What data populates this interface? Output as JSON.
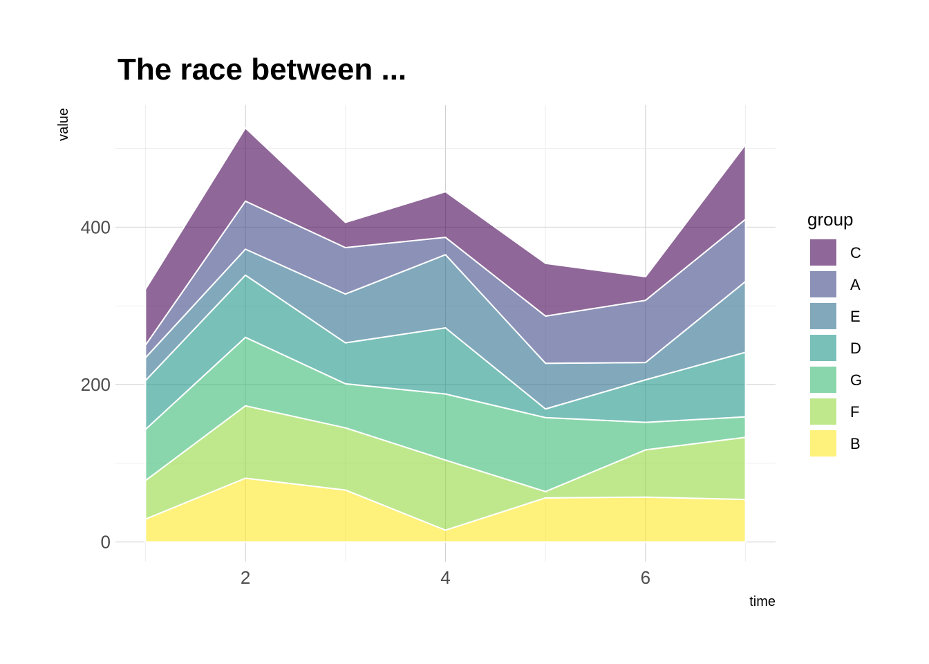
{
  "chart_data": {
    "type": "area",
    "stacked": true,
    "title": "The race between ...",
    "xlabel": "time",
    "ylabel": "value",
    "x": [
      1,
      2,
      3,
      4,
      5,
      6,
      7
    ],
    "xticks": [
      2,
      4,
      6
    ],
    "xtick_labels": [
      "2",
      "4",
      "6"
    ],
    "xlim": [
      0.7,
      7.3
    ],
    "yticks": [
      0,
      200,
      400
    ],
    "ytick_labels": [
      "0",
      "200",
      "400"
    ],
    "ylim": [
      -25,
      555
    ],
    "grid": true,
    "legend_title": "group",
    "legend_position": "right",
    "series": [
      {
        "name": "B",
        "color": "#FDE725",
        "values": [
          29,
          81,
          66,
          15,
          56,
          57,
          54
        ]
      },
      {
        "name": "F",
        "color": "#95D840",
        "values": [
          49,
          92,
          79,
          89,
          8,
          60,
          79
        ]
      },
      {
        "name": "G",
        "color": "#3CBB75",
        "values": [
          65,
          87,
          56,
          84,
          94,
          35,
          26
        ]
      },
      {
        "name": "D",
        "color": "#1F968B",
        "values": [
          62,
          79,
          52,
          84,
          11,
          54,
          82
        ]
      },
      {
        "name": "E",
        "color": "#2D708E",
        "values": [
          29,
          33,
          62,
          93,
          58,
          22,
          90
        ]
      },
      {
        "name": "A",
        "color": "#404788",
        "values": [
          16,
          61,
          59,
          22,
          60,
          79,
          79
        ]
      },
      {
        "name": "C",
        "color": "#440154",
        "values": [
          71,
          93,
          32,
          58,
          67,
          30,
          95
        ]
      }
    ],
    "legend_order": [
      "C",
      "A",
      "E",
      "D",
      "G",
      "F",
      "B"
    ],
    "fill_opacity": 0.6
  }
}
